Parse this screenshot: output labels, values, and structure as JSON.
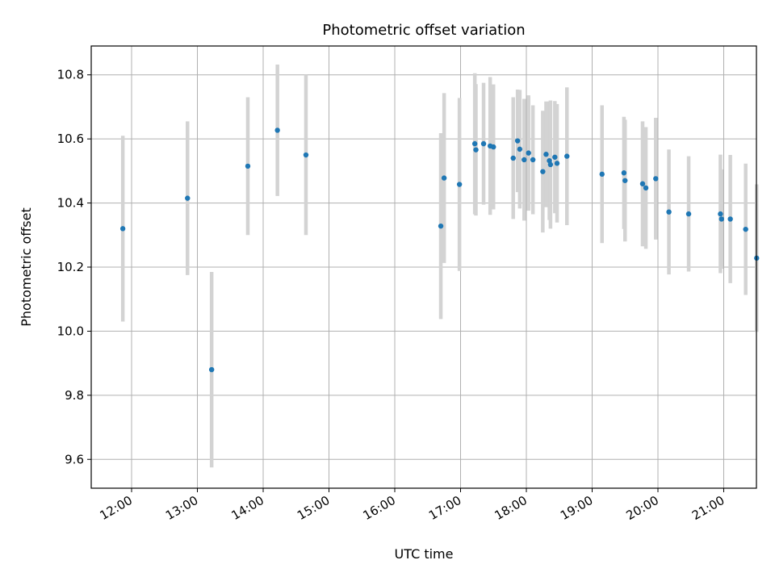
{
  "chart_data": {
    "type": "scatter",
    "title": "Photometric offset variation",
    "xlabel": "UTC time",
    "ylabel": "Photometric offset",
    "x_ticks": [
      "12:00",
      "13:00",
      "14:00",
      "15:00",
      "16:00",
      "17:00",
      "18:00",
      "19:00",
      "20:00",
      "21:00"
    ],
    "y_ticks": [
      "9.6",
      "9.8",
      "10.0",
      "10.2",
      "10.4",
      "10.6",
      "10.8"
    ],
    "xlim": [
      "11:24",
      "21:30"
    ],
    "ylim": [
      9.51,
      10.89
    ],
    "grid": true,
    "marker_color": "#1f77b4",
    "errorbar_color": "#d3d3d3",
    "points": [
      {
        "x": "11:52",
        "y": 10.32,
        "yerr": 0.29
      },
      {
        "x": "12:51",
        "y": 10.415,
        "yerr": 0.24
      },
      {
        "x": "13:13",
        "y": 9.88,
        "yerr": 0.305
      },
      {
        "x": "13:46",
        "y": 10.515,
        "yerr": 0.215
      },
      {
        "x": "14:13",
        "y": 10.627,
        "yerr": 0.205
      },
      {
        "x": "14:39",
        "y": 10.55,
        "yerr": 0.25
      },
      {
        "x": "16:42",
        "y": 10.328,
        "yerr": 0.29
      },
      {
        "x": "16:45",
        "y": 10.478,
        "yerr": 0.265
      },
      {
        "x": "16:59",
        "y": 10.458,
        "yerr": 0.27
      },
      {
        "x": "17:13",
        "y": 10.585,
        "yerr": 0.22
      },
      {
        "x": "17:14",
        "y": 10.566,
        "yerr": 0.205
      },
      {
        "x": "17:21",
        "y": 10.585,
        "yerr": 0.19
      },
      {
        "x": "17:27",
        "y": 10.578,
        "yerr": 0.215
      },
      {
        "x": "17:30",
        "y": 10.575,
        "yerr": 0.195
      },
      {
        "x": "17:48",
        "y": 10.54,
        "yerr": 0.19
      },
      {
        "x": "17:52",
        "y": 10.594,
        "yerr": 0.16
      },
      {
        "x": "17:54",
        "y": 10.568,
        "yerr": 0.185
      },
      {
        "x": "17:58",
        "y": 10.535,
        "yerr": 0.19
      },
      {
        "x": "18:02",
        "y": 10.556,
        "yerr": 0.18
      },
      {
        "x": "18:06",
        "y": 10.535,
        "yerr": 0.17
      },
      {
        "x": "18:15",
        "y": 10.498,
        "yerr": 0.19
      },
      {
        "x": "18:18",
        "y": 10.552,
        "yerr": 0.165
      },
      {
        "x": "18:21",
        "y": 10.532,
        "yerr": 0.185
      },
      {
        "x": "18:22",
        "y": 10.52,
        "yerr": 0.2
      },
      {
        "x": "18:26",
        "y": 10.543,
        "yerr": 0.175
      },
      {
        "x": "18:28",
        "y": 10.524,
        "yerr": 0.185
      },
      {
        "x": "18:37",
        "y": 10.546,
        "yerr": 0.215
      },
      {
        "x": "19:09",
        "y": 10.49,
        "yerr": 0.215
      },
      {
        "x": "19:29",
        "y": 10.494,
        "yerr": 0.175
      },
      {
        "x": "19:30",
        "y": 10.47,
        "yerr": 0.19
      },
      {
        "x": "19:46",
        "y": 10.46,
        "yerr": 0.195
      },
      {
        "x": "19:49",
        "y": 10.447,
        "yerr": 0.19
      },
      {
        "x": "19:58",
        "y": 10.476,
        "yerr": 0.19
      },
      {
        "x": "20:10",
        "y": 10.372,
        "yerr": 0.195
      },
      {
        "x": "20:28",
        "y": 10.366,
        "yerr": 0.18
      },
      {
        "x": "20:57",
        "y": 10.366,
        "yerr": 0.185
      },
      {
        "x": "20:58",
        "y": 10.35,
        "yerr": 0.155
      },
      {
        "x": "21:06",
        "y": 10.35,
        "yerr": 0.2
      },
      {
        "x": "21:20",
        "y": 10.318,
        "yerr": 0.205
      },
      {
        "x": "21:30",
        "y": 10.228,
        "yerr": 0.23
      }
    ]
  }
}
